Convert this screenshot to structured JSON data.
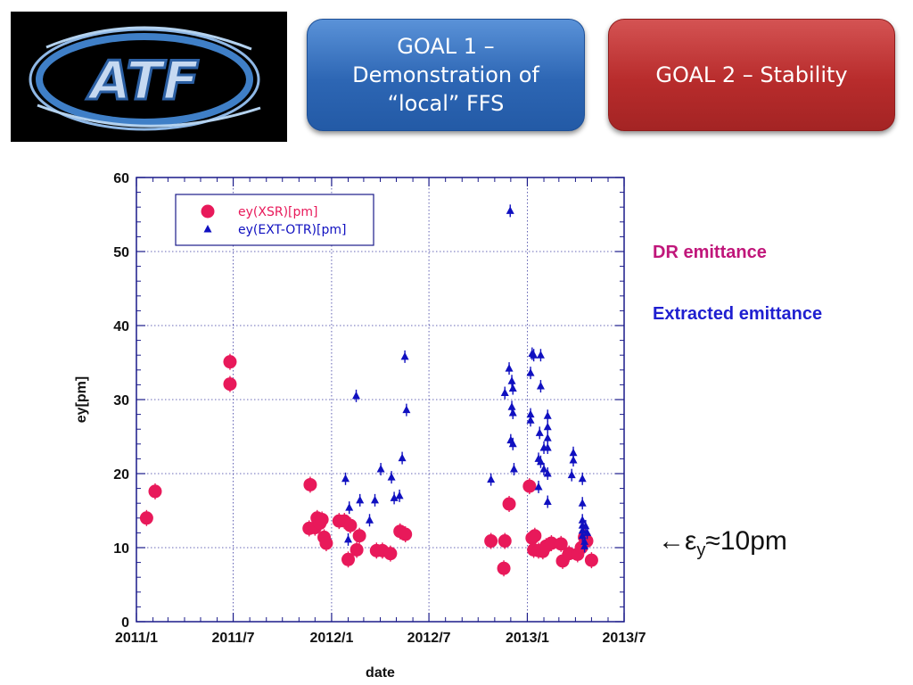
{
  "header": {
    "logo_text": "ATF",
    "goal1": {
      "label": "GOAL 1 –\nDemonstration of\n“local” FFS",
      "color": "#2d66b4"
    },
    "goal2": {
      "label": "GOAL 2 – Stability",
      "color": "#b82c2c"
    }
  },
  "annotations": {
    "dr_label": "DR emittance",
    "dr_color": "#c0167a",
    "ext_label": "Extracted emittance",
    "ext_color": "#1f1fd0",
    "eps_arrow": "←ε",
    "eps_sub": "y",
    "eps_value": "≈10pm"
  },
  "chart_data": {
    "type": "scatter",
    "xlabel": "date",
    "ylabel": "ey[pm]",
    "x_ticks": [
      "2011/1",
      "2011/7",
      "2012/1",
      "2012/7",
      "2013/1",
      "2013/7"
    ],
    "xlim": [
      "2011-01-01",
      "2013-07-01"
    ],
    "ylim": [
      0,
      60
    ],
    "y_ticks": [
      0,
      10,
      20,
      30,
      40,
      50,
      60
    ],
    "grid": true,
    "legend_position": "top-left",
    "series": [
      {
        "name": "ey(XSR)[pm]",
        "marker": "circle",
        "color": "#e8195a",
        "points": [
          {
            "x": "2011-01-20",
            "y": 14.0
          },
          {
            "x": "2011-02-05",
            "y": 17.6
          },
          {
            "x": "2011-06-25",
            "y": 35.1
          },
          {
            "x": "2011-06-25",
            "y": 32.1
          },
          {
            "x": "2011-11-22",
            "y": 18.5
          },
          {
            "x": "2011-11-20",
            "y": 12.6
          },
          {
            "x": "2011-12-01",
            "y": 12.7
          },
          {
            "x": "2011-12-05",
            "y": 14.0
          },
          {
            "x": "2011-12-10",
            "y": 13.3
          },
          {
            "x": "2011-12-14",
            "y": 13.8
          },
          {
            "x": "2011-12-18",
            "y": 11.4
          },
          {
            "x": "2011-12-22",
            "y": 10.6
          },
          {
            "x": "2012-01-15",
            "y": 13.6
          },
          {
            "x": "2012-01-25",
            "y": 13.6
          },
          {
            "x": "2012-02-05",
            "y": 13.0
          },
          {
            "x": "2012-02-01",
            "y": 8.4
          },
          {
            "x": "2012-02-22",
            "y": 11.6
          },
          {
            "x": "2012-02-17",
            "y": 9.7
          },
          {
            "x": "2012-03-25",
            "y": 9.6
          },
          {
            "x": "2012-04-05",
            "y": 9.6
          },
          {
            "x": "2012-04-20",
            "y": 9.2
          },
          {
            "x": "2012-05-08",
            "y": 12.2
          },
          {
            "x": "2012-05-18",
            "y": 11.8
          },
          {
            "x": "2012-10-25",
            "y": 10.9
          },
          {
            "x": "2012-11-20",
            "y": 10.9
          },
          {
            "x": "2012-11-18",
            "y": 7.2
          },
          {
            "x": "2012-11-28",
            "y": 15.9
          },
          {
            "x": "2013-01-05",
            "y": 18.3
          },
          {
            "x": "2013-01-10",
            "y": 11.3
          },
          {
            "x": "2013-01-15",
            "y": 11.6
          },
          {
            "x": "2013-01-13",
            "y": 9.7
          },
          {
            "x": "2013-01-22",
            "y": 9.6
          },
          {
            "x": "2013-01-30",
            "y": 9.5
          },
          {
            "x": "2013-02-05",
            "y": 10.2
          },
          {
            "x": "2013-02-15",
            "y": 10.6
          },
          {
            "x": "2013-03-05",
            "y": 10.5
          },
          {
            "x": "2013-03-08",
            "y": 8.2
          },
          {
            "x": "2013-03-20",
            "y": 9.2
          },
          {
            "x": "2013-04-05",
            "y": 9.1
          },
          {
            "x": "2013-04-12",
            "y": 10.0
          },
          {
            "x": "2013-04-18",
            "y": 11.4
          },
          {
            "x": "2013-04-22",
            "y": 10.9
          },
          {
            "x": "2013-05-01",
            "y": 8.3
          }
        ]
      },
      {
        "name": "ey(EXT-OTR)[pm]",
        "marker": "triangle",
        "color": "#1010c0",
        "points": [
          {
            "x": "2012-01-27",
            "y": 19.3
          },
          {
            "x": "2012-02-03",
            "y": 15.4
          },
          {
            "x": "2012-02-01",
            "y": 11.1
          },
          {
            "x": "2012-02-16",
            "y": 30.5
          },
          {
            "x": "2012-02-23",
            "y": 16.4
          },
          {
            "x": "2012-03-12",
            "y": 13.7
          },
          {
            "x": "2012-03-22",
            "y": 16.4
          },
          {
            "x": "2012-04-02",
            "y": 20.6
          },
          {
            "x": "2012-04-22",
            "y": 19.5
          },
          {
            "x": "2012-04-27",
            "y": 16.7
          },
          {
            "x": "2012-05-07",
            "y": 17.0
          },
          {
            "x": "2012-05-12",
            "y": 22.1
          },
          {
            "x": "2012-05-17",
            "y": 35.8
          },
          {
            "x": "2012-05-20",
            "y": 28.6
          },
          {
            "x": "2012-10-25",
            "y": 19.2
          },
          {
            "x": "2012-11-20",
            "y": 30.9
          },
          {
            "x": "2012-11-28",
            "y": 34.2
          },
          {
            "x": "2012-11-30",
            "y": 55.5
          },
          {
            "x": "2012-12-03",
            "y": 32.5
          },
          {
            "x": "2012-12-05",
            "y": 31.5
          },
          {
            "x": "2012-12-03",
            "y": 29.0
          },
          {
            "x": "2012-12-05",
            "y": 28.2
          },
          {
            "x": "2012-12-01",
            "y": 24.5
          },
          {
            "x": "2012-12-05",
            "y": 24.0
          },
          {
            "x": "2012-12-07",
            "y": 20.6
          },
          {
            "x": "2013-01-07",
            "y": 33.6
          },
          {
            "x": "2013-01-10",
            "y": 36.2
          },
          {
            "x": "2013-01-13",
            "y": 36.0
          },
          {
            "x": "2013-01-07",
            "y": 28.0
          },
          {
            "x": "2013-01-07",
            "y": 27.2
          },
          {
            "x": "2013-01-26",
            "y": 36.0
          },
          {
            "x": "2013-01-26",
            "y": 31.8
          },
          {
            "x": "2013-01-24",
            "y": 25.5
          },
          {
            "x": "2013-01-22",
            "y": 22.0
          },
          {
            "x": "2013-01-26",
            "y": 21.6
          },
          {
            "x": "2013-01-22",
            "y": 18.2
          },
          {
            "x": "2013-02-01",
            "y": 23.5
          },
          {
            "x": "2013-02-01",
            "y": 20.6
          },
          {
            "x": "2013-02-08",
            "y": 27.8
          },
          {
            "x": "2013-02-08",
            "y": 26.3
          },
          {
            "x": "2013-02-08",
            "y": 24.8
          },
          {
            "x": "2013-02-08",
            "y": 23.5
          },
          {
            "x": "2013-02-08",
            "y": 20.0
          },
          {
            "x": "2013-02-08",
            "y": 16.2
          },
          {
            "x": "2013-03-28",
            "y": 22.8
          },
          {
            "x": "2013-03-28",
            "y": 21.8
          },
          {
            "x": "2013-03-25",
            "y": 19.8
          },
          {
            "x": "2013-04-14",
            "y": 19.3
          },
          {
            "x": "2013-04-14",
            "y": 16.0
          },
          {
            "x": "2013-04-14",
            "y": 13.7
          },
          {
            "x": "2013-04-14",
            "y": 13.0
          },
          {
            "x": "2013-04-14",
            "y": 12.3
          },
          {
            "x": "2013-04-14",
            "y": 11.6
          },
          {
            "x": "2013-04-18",
            "y": 10.8
          },
          {
            "x": "2013-04-18",
            "y": 10.2
          },
          {
            "x": "2013-04-20",
            "y": 12.9
          },
          {
            "x": "2013-04-23",
            "y": 12.0
          }
        ]
      }
    ]
  }
}
